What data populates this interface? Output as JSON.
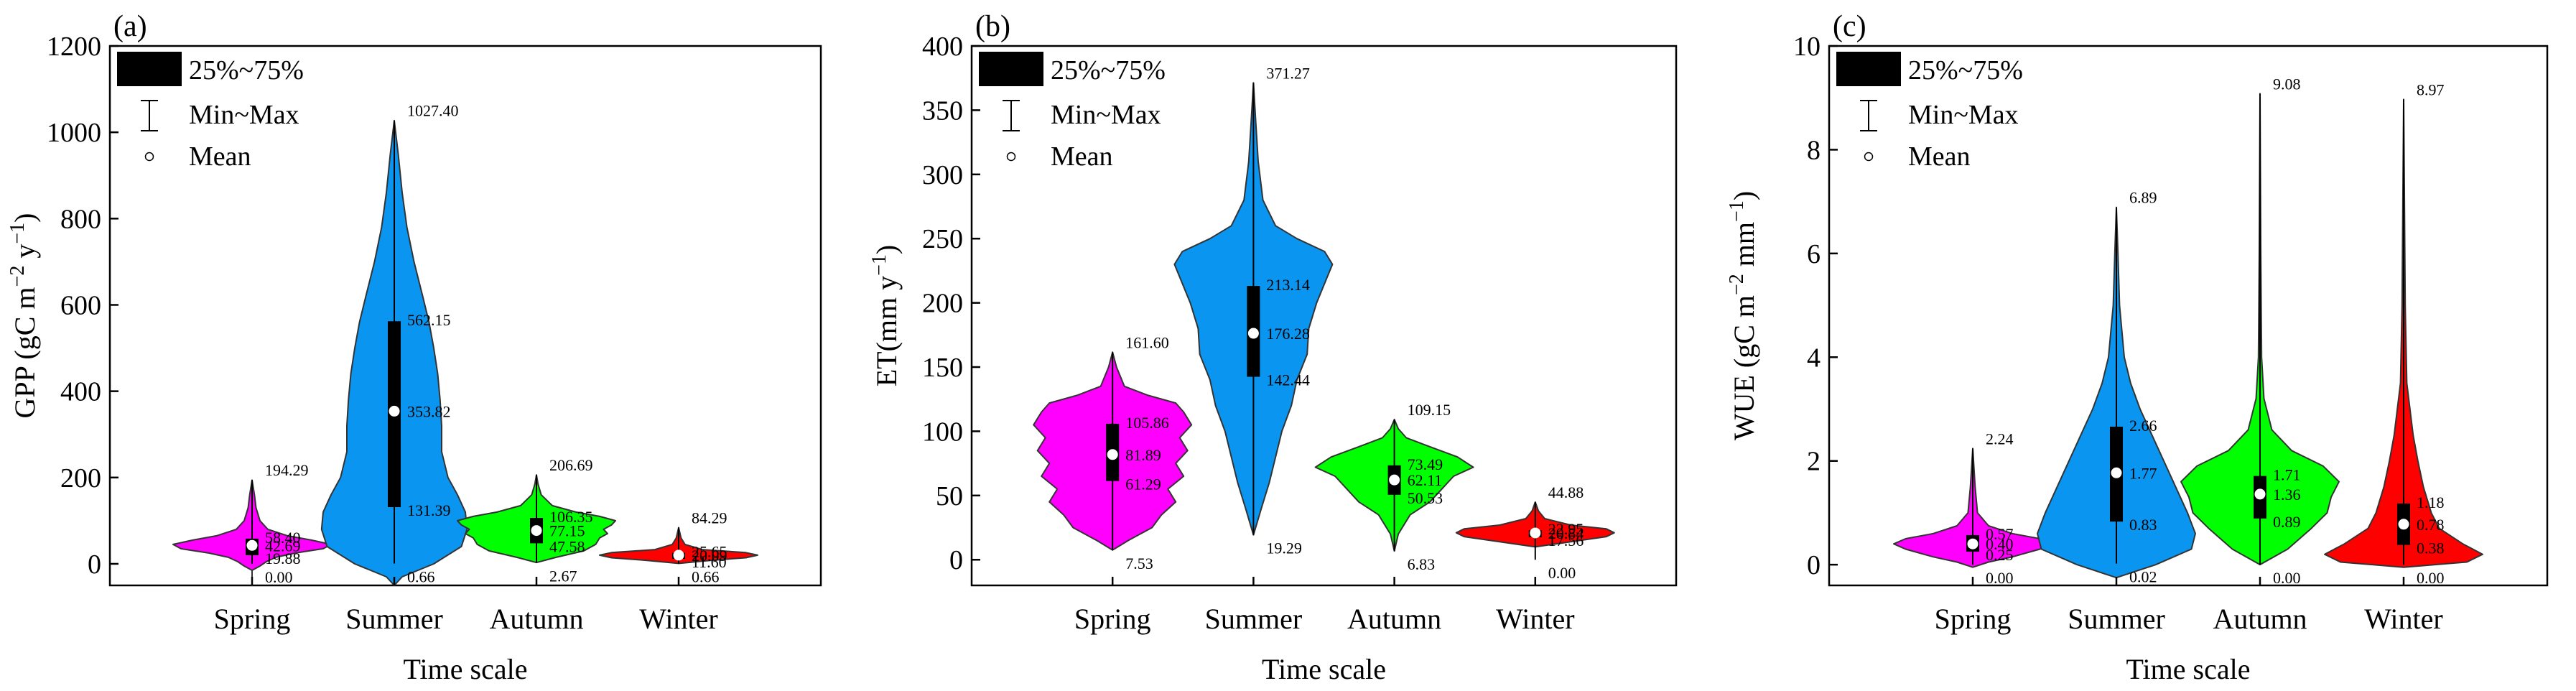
{
  "chart_data": [
    {
      "type": "violin",
      "panel_label": "(a)",
      "xlabel": "Time scale",
      "ylabel": "GPP (gC m⁻² y⁻¹)",
      "ylim": [
        -50,
        1200
      ],
      "yticks": [
        0,
        200,
        400,
        600,
        800,
        1000,
        1200
      ],
      "categories": [
        "Spring",
        "Summer",
        "Autumn",
        "Winter"
      ],
      "colors": [
        "#ff00ff",
        "#0a96f0",
        "#00ff00",
        "#ff0000"
      ],
      "legend": {
        "box": "25%~75%",
        "whisker": "Min~Max",
        "mean": "Mean"
      },
      "series": [
        {
          "name": "Spring",
          "min": 0.0,
          "q1": 19.88,
          "mean": 42.69,
          "q3": 58.4,
          "max": 194.29,
          "labels": {
            "max": "194.29",
            "q3": "58.40",
            "mean": "42.69",
            "q1": "19.88",
            "min": "0.00"
          },
          "shape": [
            [
              -50,
              0.0
            ],
            [
              -15,
              0.0
            ],
            [
              -5,
              0.1
            ],
            [
              5,
              0.18
            ],
            [
              15,
              0.3
            ],
            [
              25,
              0.55
            ],
            [
              35,
              0.9
            ],
            [
              45,
              1.0
            ],
            [
              55,
              0.75
            ],
            [
              65,
              0.45
            ],
            [
              80,
              0.2
            ],
            [
              100,
              0.1
            ],
            [
              130,
              0.05
            ],
            [
              160,
              0.03
            ],
            [
              194,
              0.0
            ]
          ]
        },
        {
          "name": "Summer",
          "min": 0.66,
          "q1": 131.39,
          "mean": 353.82,
          "q3": 562.15,
          "max": 1027.4,
          "labels": {
            "max": "1027.40",
            "q3": "562.15",
            "mean": "353.82",
            "q1": "131.39",
            "min": "0.66"
          },
          "shape": [
            [
              -50,
              0.0
            ],
            [
              -30,
              0.1
            ],
            [
              0,
              0.5
            ],
            [
              40,
              0.85
            ],
            [
              80,
              0.92
            ],
            [
              120,
              0.9
            ],
            [
              160,
              0.8
            ],
            [
              200,
              0.68
            ],
            [
              260,
              0.6
            ],
            [
              320,
              0.6
            ],
            [
              380,
              0.58
            ],
            [
              440,
              0.55
            ],
            [
              500,
              0.5
            ],
            [
              560,
              0.44
            ],
            [
              620,
              0.36
            ],
            [
              700,
              0.25
            ],
            [
              780,
              0.16
            ],
            [
              860,
              0.1
            ],
            [
              950,
              0.05
            ],
            [
              1027,
              0.0
            ]
          ]
        },
        {
          "name": "Autumn",
          "min": 2.67,
          "q1": 47.58,
          "mean": 77.15,
          "q3": 106.35,
          "max": 206.69,
          "labels": {
            "max": "206.69",
            "q3": "106.35",
            "mean": "77.15",
            "q1": "47.58",
            "min": "2.67"
          },
          "shape": [
            [
              3,
              0.0
            ],
            [
              15,
              0.25
            ],
            [
              30,
              0.6
            ],
            [
              45,
              0.75
            ],
            [
              60,
              0.8
            ],
            [
              70,
              0.9
            ],
            [
              80,
              0.85
            ],
            [
              90,
              0.95
            ],
            [
              100,
              1.0
            ],
            [
              110,
              0.8
            ],
            [
              120,
              0.5
            ],
            [
              135,
              0.2
            ],
            [
              160,
              0.06
            ],
            [
              185,
              0.02
            ],
            [
              206,
              0.0
            ]
          ]
        },
        {
          "name": "Winter",
          "min": 0.66,
          "q1": 11.6,
          "mean": 20.09,
          "q3": 25.65,
          "max": 84.29,
          "labels": {
            "max": "84.29",
            "q3": "25.65",
            "mean": "20.09",
            "q1": "11.60",
            "min": "0.66"
          },
          "shape": [
            [
              1,
              0.0
            ],
            [
              8,
              0.4
            ],
            [
              14,
              0.85
            ],
            [
              20,
              1.0
            ],
            [
              26,
              0.85
            ],
            [
              33,
              0.3
            ],
            [
              45,
              0.08
            ],
            [
              60,
              0.03
            ],
            [
              84,
              0.0
            ]
          ]
        }
      ]
    },
    {
      "type": "violin",
      "panel_label": "(b)",
      "xlabel": "Time scale",
      "ylabel": "ET(mm y⁻¹)",
      "ylim": [
        -20,
        400
      ],
      "yticks": [
        0,
        50,
        100,
        150,
        200,
        250,
        300,
        350,
        400
      ],
      "categories": [
        "Spring",
        "Summer",
        "Autumn",
        "Winter"
      ],
      "colors": [
        "#ff00ff",
        "#0a96f0",
        "#00ff00",
        "#ff0000"
      ],
      "legend": {
        "box": "25%~75%",
        "whisker": "Min~Max",
        "mean": "Mean"
      },
      "series": [
        {
          "name": "Spring",
          "min": 7.53,
          "q1": 61.29,
          "mean": 81.89,
          "q3": 105.86,
          "max": 161.6,
          "labels": {
            "max": "161.60",
            "q3": "105.86",
            "mean": "81.89",
            "q1": "61.29",
            "min": "7.53"
          },
          "shape": [
            [
              7.5,
              0.0
            ],
            [
              15,
              0.2
            ],
            [
              25,
              0.5
            ],
            [
              35,
              0.62
            ],
            [
              45,
              0.8
            ],
            [
              55,
              0.7
            ],
            [
              65,
              0.9
            ],
            [
              75,
              0.8
            ],
            [
              85,
              0.95
            ],
            [
              95,
              0.85
            ],
            [
              105,
              1.0
            ],
            [
              115,
              0.9
            ],
            [
              122,
              0.8
            ],
            [
              128,
              0.45
            ],
            [
              135,
              0.15
            ],
            [
              150,
              0.05
            ],
            [
              161.6,
              0.0
            ]
          ]
        },
        {
          "name": "Summer",
          "min": 19.29,
          "q1": 142.44,
          "mean": 176.28,
          "q3": 213.14,
          "max": 371.27,
          "labels": {
            "max": "371.27",
            "q3": "213.14",
            "mean": "176.28",
            "q1": "142.44",
            "min": "19.29"
          },
          "shape": [
            [
              19.3,
              0.0
            ],
            [
              40,
              0.1
            ],
            [
              60,
              0.2
            ],
            [
              80,
              0.28
            ],
            [
              100,
              0.36
            ],
            [
              120,
              0.48
            ],
            [
              140,
              0.55
            ],
            [
              160,
              0.68
            ],
            [
              180,
              0.7
            ],
            [
              200,
              0.8
            ],
            [
              215,
              0.9
            ],
            [
              230,
              1.0
            ],
            [
              240,
              0.9
            ],
            [
              250,
              0.55
            ],
            [
              260,
              0.28
            ],
            [
              280,
              0.12
            ],
            [
              310,
              0.06
            ],
            [
              340,
              0.03
            ],
            [
              371.3,
              0.0
            ]
          ]
        },
        {
          "name": "Autumn",
          "min": 6.83,
          "q1": 50.53,
          "mean": 62.11,
          "q3": 73.49,
          "max": 109.15,
          "labels": {
            "max": "109.15",
            "q3": "73.49",
            "mean": "62.11",
            "q1": "50.53",
            "min": "6.83"
          },
          "shape": [
            [
              6.8,
              0.0
            ],
            [
              20,
              0.05
            ],
            [
              35,
              0.2
            ],
            [
              45,
              0.45
            ],
            [
              55,
              0.6
            ],
            [
              65,
              0.75
            ],
            [
              72,
              1.0
            ],
            [
              80,
              0.8
            ],
            [
              88,
              0.45
            ],
            [
              95,
              0.15
            ],
            [
              102,
              0.05
            ],
            [
              109.2,
              0.0
            ]
          ]
        },
        {
          "name": "Winter",
          "min": 0.0,
          "q1": 17.56,
          "mean": 20.84,
          "q3": 22.95,
          "max": 44.88,
          "labels": {
            "max": "44.88",
            "q3": "22.95",
            "mean": "20.84",
            "q1": "17.56",
            "min": "0.00"
          },
          "shape": [
            [
              10,
              0.0
            ],
            [
              14,
              0.45
            ],
            [
              18,
              0.9
            ],
            [
              21,
              1.0
            ],
            [
              24,
              0.9
            ],
            [
              27,
              0.45
            ],
            [
              32,
              0.12
            ],
            [
              38,
              0.04
            ],
            [
              44.9,
              0.0
            ]
          ]
        }
      ]
    },
    {
      "type": "violin",
      "panel_label": "(c)",
      "xlabel": "Time scale",
      "ylabel": "WUE (gC m⁻² mm⁻¹)",
      "ylim": [
        -0.4,
        10
      ],
      "yticks": [
        0,
        2,
        4,
        6,
        8,
        10
      ],
      "categories": [
        "Spring",
        "Summer",
        "Autumn",
        "Winter"
      ],
      "colors": [
        "#ff00ff",
        "#0a96f0",
        "#00ff00",
        "#ff0000"
      ],
      "legend": {
        "box": "25%~75%",
        "whisker": "Min~Max",
        "mean": "Mean"
      },
      "series": [
        {
          "name": "Spring",
          "min": 0.0,
          "q1": 0.25,
          "mean": 0.4,
          "q3": 0.57,
          "max": 2.24,
          "labels": {
            "max": "2.24",
            "q3": "0.57",
            "mean": "0.40",
            "q1": "0.25",
            "min": "0.00"
          },
          "shape": [
            [
              -0.05,
              0.0
            ],
            [
              0.05,
              0.2
            ],
            [
              0.15,
              0.5
            ],
            [
              0.3,
              0.85
            ],
            [
              0.4,
              1.0
            ],
            [
              0.5,
              0.85
            ],
            [
              0.6,
              0.5
            ],
            [
              0.75,
              0.2
            ],
            [
              1.0,
              0.06
            ],
            [
              1.5,
              0.03
            ],
            [
              2.24,
              0.0
            ]
          ]
        },
        {
          "name": "Summer",
          "min": 0.02,
          "q1": 0.83,
          "mean": 1.77,
          "q3": 2.66,
          "max": 6.89,
          "labels": {
            "max": "6.89",
            "q3": "2.66",
            "mean": "1.77",
            "q1": "0.83",
            "min": "0.02"
          },
          "shape": [
            [
              -0.25,
              0.0
            ],
            [
              0.0,
              0.5
            ],
            [
              0.3,
              0.95
            ],
            [
              0.6,
              1.0
            ],
            [
              1.0,
              0.9
            ],
            [
              1.5,
              0.75
            ],
            [
              2.0,
              0.6
            ],
            [
              2.5,
              0.45
            ],
            [
              3.0,
              0.3
            ],
            [
              3.5,
              0.18
            ],
            [
              4.0,
              0.1
            ],
            [
              5.0,
              0.04
            ],
            [
              6.0,
              0.02
            ],
            [
              6.89,
              0.0
            ]
          ]
        },
        {
          "name": "Autumn",
          "min": 0.0,
          "q1": 0.89,
          "mean": 1.36,
          "q3": 1.71,
          "max": 9.08,
          "labels": {
            "max": "9.08",
            "q3": "1.71",
            "mean": "1.36",
            "q1": "0.89",
            "min": "0.00"
          },
          "shape": [
            [
              0.0,
              0.0
            ],
            [
              0.3,
              0.35
            ],
            [
              0.7,
              0.65
            ],
            [
              1.0,
              0.85
            ],
            [
              1.3,
              0.9
            ],
            [
              1.6,
              1.0
            ],
            [
              1.9,
              0.8
            ],
            [
              2.2,
              0.4
            ],
            [
              2.6,
              0.15
            ],
            [
              3.2,
              0.05
            ],
            [
              4.0,
              0.02
            ],
            [
              6.0,
              0.01
            ],
            [
              9.08,
              0.0
            ]
          ]
        },
        {
          "name": "Winter",
          "min": 0.0,
          "q1": 0.38,
          "mean": 0.78,
          "q3": 1.18,
          "max": 8.97,
          "labels": {
            "max": "8.97",
            "q3": "1.18",
            "mean": "0.78",
            "q1": "0.38",
            "min": "0.00"
          },
          "shape": [
            [
              -0.05,
              0.0
            ],
            [
              0.05,
              0.8
            ],
            [
              0.2,
              1.0
            ],
            [
              0.4,
              0.75
            ],
            [
              0.7,
              0.45
            ],
            [
              1.0,
              0.35
            ],
            [
              1.5,
              0.25
            ],
            [
              2.0,
              0.18
            ],
            [
              2.5,
              0.12
            ],
            [
              3.0,
              0.08
            ],
            [
              3.5,
              0.04
            ],
            [
              5.0,
              0.02
            ],
            [
              7.0,
              0.01
            ],
            [
              8.97,
              0.0
            ]
          ]
        }
      ]
    }
  ]
}
